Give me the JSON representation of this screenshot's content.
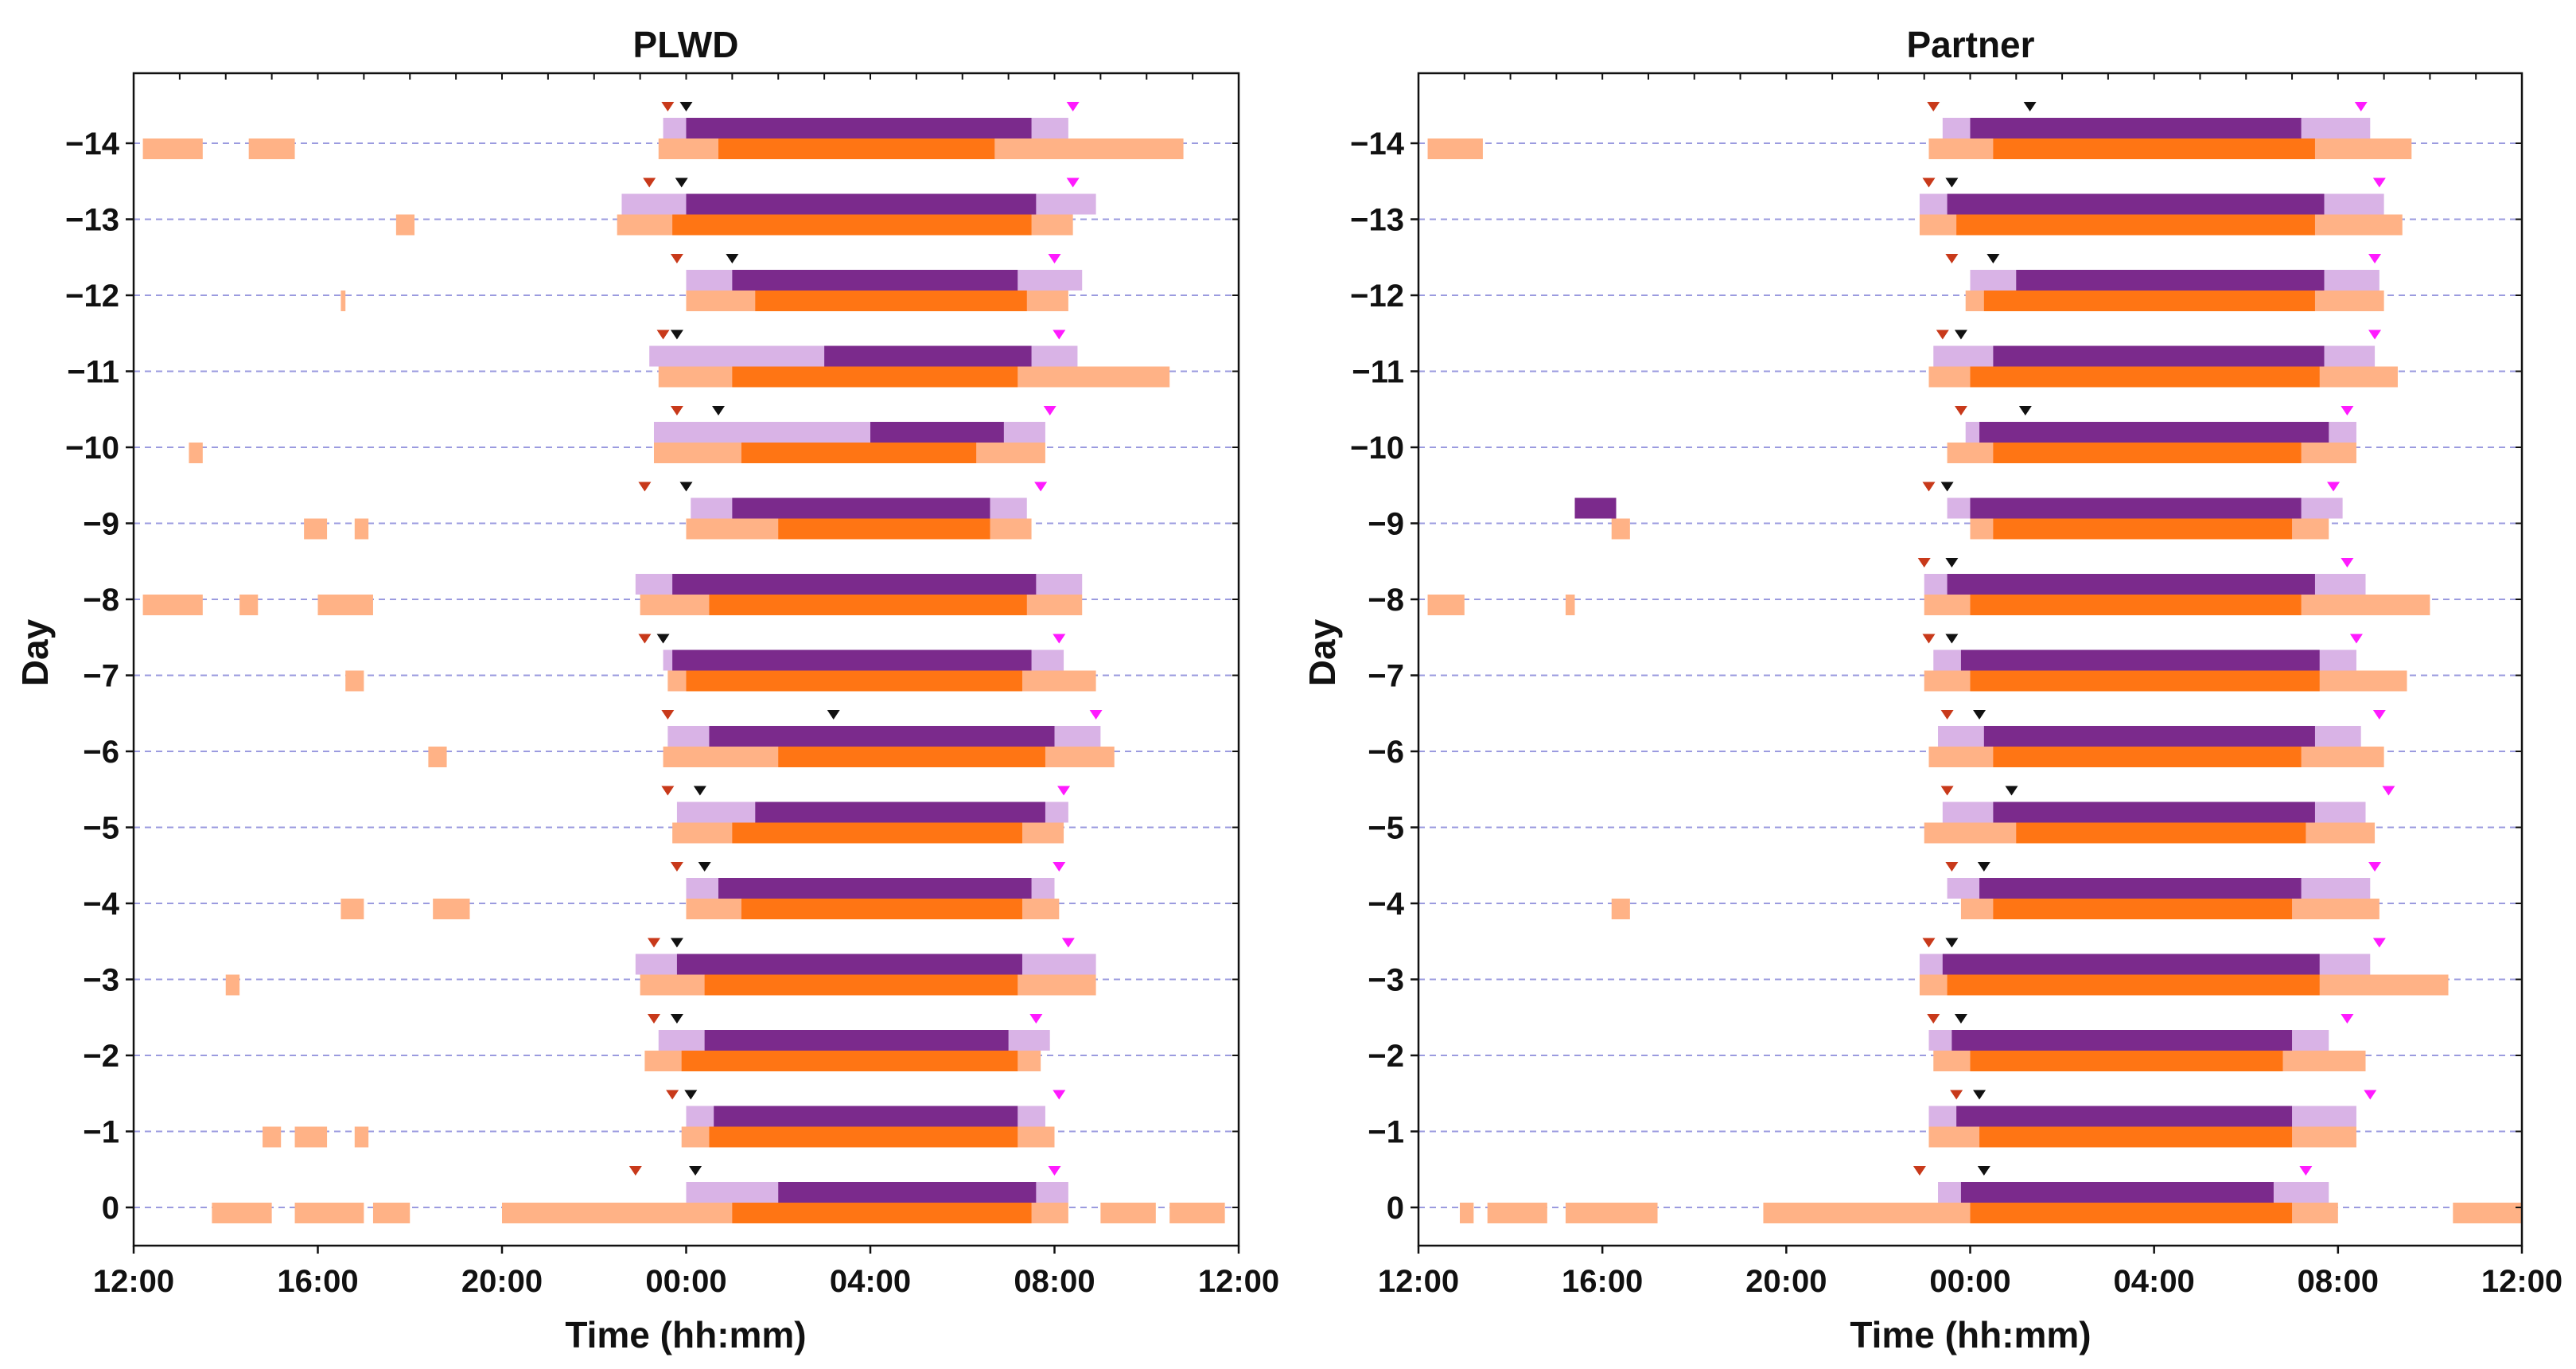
{
  "colors": {
    "sleep_dark": "#7b2a8c",
    "sleep_light": "#d9b3e6",
    "activity_dark": "#ff6a00",
    "activity_light": "#ffb286",
    "marker_red": "#c8391a",
    "marker_black": "#111111",
    "marker_magenta": "#ff1aff",
    "gridline": "#9b9bdf"
  },
  "chart_data": [
    {
      "type": "timeline",
      "title": "PLWD",
      "xlabel": "Time (hh:mm)",
      "ylabel": "Day",
      "xlim": [
        12,
        36
      ],
      "x_ticks": [
        12,
        16,
        20,
        24,
        28,
        32,
        36
      ],
      "x_tick_labels": [
        "12:00",
        "16:00",
        "20:00",
        "00:00",
        "04:00",
        "08:00",
        "12:00"
      ],
      "y_ticks": [
        0,
        -1,
        -2,
        -3,
        -4,
        -5,
        -6,
        -7,
        -8,
        -9,
        -10,
        -11,
        -12,
        -13,
        -14
      ],
      "y_tick_labels": [
        "0",
        "−1",
        "−2",
        "−3",
        "−4",
        "−5",
        "−6",
        "−7",
        "−8",
        "−9",
        "−10",
        "−11",
        "−12",
        "−13",
        "−14"
      ],
      "days": [
        {
          "day": 0,
          "sleep_start": 24.0,
          "sleep_end": 32.3,
          "deep": [
            [
              26.0,
              31.6
            ]
          ],
          "act_light": [
            [
              13.7,
              15.0
            ],
            [
              15.5,
              17.0
            ],
            [
              17.2,
              18.0
            ],
            [
              20.0,
              32.3
            ],
            [
              33.0,
              34.2
            ],
            [
              34.5,
              35.7
            ]
          ],
          "act_dark": [
            [
              25.0,
              31.5
            ]
          ],
          "onset_red": 22.9,
          "onset_black": 24.2,
          "offset_magenta": 32.0
        },
        {
          "day": -1,
          "sleep_start": 24.0,
          "sleep_end": 31.8,
          "deep": [
            [
              24.6,
              31.2
            ]
          ],
          "act_light": [
            [
              14.8,
              15.2
            ],
            [
              15.5,
              16.2
            ],
            [
              16.8,
              17.1
            ],
            [
              23.9,
              32.0
            ]
          ],
          "act_dark": [
            [
              24.5,
              31.2
            ]
          ],
          "onset_red": 23.7,
          "onset_black": 24.1,
          "offset_magenta": 32.1
        },
        {
          "day": -2,
          "sleep_start": 23.4,
          "sleep_end": 31.9,
          "deep": [
            [
              24.4,
              31.0
            ]
          ],
          "act_light": [
            [
              23.1,
              31.7
            ]
          ],
          "act_dark": [
            [
              23.9,
              31.2
            ]
          ],
          "onset_red": 23.3,
          "onset_black": 23.8,
          "offset_magenta": 31.6
        },
        {
          "day": -3,
          "sleep_start": 22.9,
          "sleep_end": 32.9,
          "deep": [
            [
              23.8,
              31.3
            ]
          ],
          "act_light": [
            [
              14.0,
              14.3
            ],
            [
              23.0,
              32.9
            ]
          ],
          "act_dark": [
            [
              24.4,
              31.2
            ]
          ],
          "onset_red": 23.3,
          "onset_black": 23.8,
          "offset_magenta": 32.3
        },
        {
          "day": -4,
          "sleep_start": 24.0,
          "sleep_end": 32.0,
          "deep": [
            [
              24.7,
              31.5
            ]
          ],
          "act_light": [
            [
              16.5,
              17.0
            ],
            [
              18.5,
              19.3
            ],
            [
              24.0,
              32.1
            ]
          ],
          "act_dark": [
            [
              25.2,
              31.3
            ]
          ],
          "onset_red": 23.8,
          "onset_black": 24.4,
          "offset_magenta": 32.1
        },
        {
          "day": -5,
          "sleep_start": 23.8,
          "sleep_end": 32.3,
          "deep": [
            [
              25.5,
              31.8
            ]
          ],
          "act_light": [
            [
              23.7,
              32.2
            ]
          ],
          "act_dark": [
            [
              25.0,
              31.3
            ]
          ],
          "onset_red": 23.6,
          "onset_black": 24.3,
          "offset_magenta": 32.2
        },
        {
          "day": -6,
          "sleep_start": 23.6,
          "sleep_end": 33.0,
          "deep": [
            [
              24.5,
              32.0
            ]
          ],
          "act_light": [
            [
              18.4,
              18.8
            ],
            [
              23.5,
              33.3
            ]
          ],
          "act_dark": [
            [
              26.0,
              31.8
            ]
          ],
          "onset_red": 23.6,
          "onset_black": 27.2,
          "offset_magenta": 32.9
        },
        {
          "day": -7,
          "sleep_start": 23.5,
          "sleep_end": 32.2,
          "deep": [
            [
              23.7,
              31.5
            ]
          ],
          "act_light": [
            [
              16.6,
              17.0
            ],
            [
              23.6,
              32.9
            ]
          ],
          "act_dark": [
            [
              24.0,
              31.3
            ]
          ],
          "onset_red": 23.1,
          "onset_black": 23.5,
          "offset_magenta": 32.1
        },
        {
          "day": -8,
          "sleep_start": 22.9,
          "sleep_end": 32.6,
          "deep": [
            [
              23.7,
              31.6
            ]
          ],
          "act_light": [
            [
              12.2,
              13.5
            ],
            [
              14.3,
              14.7
            ],
            [
              16.0,
              17.2
            ],
            [
              23.0,
              32.6
            ]
          ],
          "act_dark": [
            [
              24.5,
              31.4
            ]
          ],
          "onset_red": null,
          "onset_black": null,
          "offset_magenta": null
        },
        {
          "day": -9,
          "sleep_start": 24.1,
          "sleep_end": 31.4,
          "deep": [
            [
              25.0,
              30.6
            ]
          ],
          "act_light": [
            [
              15.7,
              16.2
            ],
            [
              16.8,
              17.1
            ],
            [
              24.0,
              31.5
            ]
          ],
          "act_dark": [
            [
              26.0,
              30.6
            ]
          ],
          "onset_red": 23.1,
          "onset_black": 24.0,
          "offset_magenta": 31.7
        },
        {
          "day": -10,
          "sleep_start": 23.3,
          "sleep_end": 31.8,
          "deep": [
            [
              28.0,
              30.9
            ]
          ],
          "act_light": [
            [
              13.2,
              13.5
            ],
            [
              23.3,
              31.8
            ]
          ],
          "act_dark": [
            [
              25.2,
              30.3
            ]
          ],
          "onset_red": 23.8,
          "onset_black": 24.7,
          "offset_magenta": 31.9
        },
        {
          "day": -11,
          "sleep_start": 23.2,
          "sleep_end": 32.5,
          "deep": [
            [
              27.0,
              31.5
            ]
          ],
          "act_light": [
            [
              23.4,
              34.5
            ]
          ],
          "act_dark": [
            [
              25.0,
              31.2
            ]
          ],
          "onset_red": 23.5,
          "onset_black": 23.8,
          "offset_magenta": 32.1
        },
        {
          "day": -12,
          "sleep_start": 24.0,
          "sleep_end": 32.6,
          "deep": [
            [
              25.0,
              31.2
            ]
          ],
          "act_light": [
            [
              16.5,
              16.6
            ],
            [
              24.0,
              32.3
            ]
          ],
          "act_dark": [
            [
              25.5,
              31.4
            ]
          ],
          "onset_red": 23.8,
          "onset_black": 25.0,
          "offset_magenta": 32.0
        },
        {
          "day": -13,
          "sleep_start": 22.6,
          "sleep_end": 32.9,
          "deep": [
            [
              24.0,
              31.6
            ]
          ],
          "act_light": [
            [
              17.7,
              18.1
            ],
            [
              22.5,
              32.4
            ]
          ],
          "act_dark": [
            [
              23.7,
              31.5
            ]
          ],
          "onset_red": 23.2,
          "onset_black": 23.9,
          "offset_magenta": 32.4
        },
        {
          "day": -14,
          "sleep_start": 23.5,
          "sleep_end": 32.3,
          "deep": [
            [
              24.0,
              31.5
            ]
          ],
          "act_light": [
            [
              12.2,
              13.5
            ],
            [
              14.5,
              15.5
            ],
            [
              23.4,
              34.8
            ]
          ],
          "act_dark": [
            [
              24.7,
              30.7
            ]
          ],
          "onset_red": 23.6,
          "onset_black": 24.0,
          "offset_magenta": 32.4
        }
      ]
    },
    {
      "type": "timeline",
      "title": "Partner",
      "xlabel": "Time (hh:mm)",
      "ylabel": "Day",
      "xlim": [
        12,
        36
      ],
      "x_ticks": [
        12,
        16,
        20,
        24,
        28,
        32,
        36
      ],
      "x_tick_labels": [
        "12:00",
        "16:00",
        "20:00",
        "00:00",
        "04:00",
        "08:00",
        "12:00"
      ],
      "y_ticks": [
        0,
        -1,
        -2,
        -3,
        -4,
        -5,
        -6,
        -7,
        -8,
        -9,
        -10,
        -11,
        -12,
        -13,
        -14
      ],
      "y_tick_labels": [
        "0",
        "−1",
        "−2",
        "−3",
        "−4",
        "−5",
        "−6",
        "−7",
        "−8",
        "−9",
        "−10",
        "−11",
        "−12",
        "−13",
        "−14"
      ],
      "days": [
        {
          "day": 0,
          "sleep_start": 23.3,
          "sleep_end": 31.8,
          "deep": [
            [
              23.8,
              30.6
            ]
          ],
          "act_light": [
            [
              12.9,
              13.2
            ],
            [
              13.5,
              14.8
            ],
            [
              15.2,
              17.2
            ],
            [
              19.5,
              32.0
            ],
            [
              34.5,
              36.0
            ]
          ],
          "act_dark": [
            [
              24.0,
              31.0
            ]
          ],
          "onset_red": 22.9,
          "onset_black": 24.3,
          "offset_magenta": 31.3
        },
        {
          "day": -1,
          "sleep_start": 23.1,
          "sleep_end": 32.4,
          "deep": [
            [
              23.7,
              31.0
            ]
          ],
          "act_light": [
            [
              23.1,
              32.4
            ]
          ],
          "act_dark": [
            [
              24.2,
              31.0
            ]
          ],
          "onset_red": 23.7,
          "onset_black": 24.2,
          "offset_magenta": 32.7
        },
        {
          "day": -2,
          "sleep_start": 23.1,
          "sleep_end": 31.8,
          "deep": [
            [
              23.6,
              31.0
            ]
          ],
          "act_light": [
            [
              23.2,
              32.6
            ]
          ],
          "act_dark": [
            [
              24.0,
              30.8
            ]
          ],
          "onset_red": 23.2,
          "onset_black": 23.8,
          "offset_magenta": 32.2
        },
        {
          "day": -3,
          "sleep_start": 22.9,
          "sleep_end": 32.7,
          "deep": [
            [
              23.4,
              31.6
            ]
          ],
          "act_light": [
            [
              22.9,
              34.4
            ]
          ],
          "act_dark": [
            [
              23.5,
              31.6
            ]
          ],
          "onset_red": 23.1,
          "onset_black": 23.6,
          "offset_magenta": 32.9
        },
        {
          "day": -4,
          "sleep_start": 23.5,
          "sleep_end": 32.7,
          "deep": [
            [
              24.2,
              31.2
            ]
          ],
          "act_light": [
            [
              16.2,
              16.6
            ],
            [
              23.8,
              32.9
            ]
          ],
          "act_dark": [
            [
              24.5,
              31.0
            ]
          ],
          "onset_red": 23.6,
          "onset_black": 24.3,
          "offset_magenta": 32.8
        },
        {
          "day": -5,
          "sleep_start": 23.4,
          "sleep_end": 32.6,
          "deep": [
            [
              24.5,
              31.5
            ]
          ],
          "act_light": [
            [
              23.0,
              32.8
            ]
          ],
          "act_dark": [
            [
              25.0,
              31.3
            ]
          ],
          "onset_red": 23.5,
          "onset_black": 24.9,
          "offset_magenta": 33.1
        },
        {
          "day": -6,
          "sleep_start": 23.3,
          "sleep_end": 32.5,
          "deep": [
            [
              24.3,
              31.5
            ]
          ],
          "act_light": [
            [
              23.1,
              33.0
            ]
          ],
          "act_dark": [
            [
              24.5,
              31.2
            ]
          ],
          "onset_red": 23.5,
          "onset_black": 24.2,
          "offset_magenta": 32.9
        },
        {
          "day": -7,
          "sleep_start": 23.2,
          "sleep_end": 32.4,
          "deep": [
            [
              23.8,
              31.6
            ]
          ],
          "act_light": [
            [
              23.0,
              33.5
            ]
          ],
          "act_dark": [
            [
              24.0,
              31.6
            ]
          ],
          "onset_red": 23.1,
          "onset_black": 23.6,
          "offset_magenta": 32.4
        },
        {
          "day": -8,
          "sleep_start": 23.0,
          "sleep_end": 32.6,
          "deep": [
            [
              23.5,
              31.5
            ]
          ],
          "act_light": [
            [
              12.2,
              13.0
            ],
            [
              15.2,
              15.4
            ],
            [
              23.0,
              34.0
            ]
          ],
          "act_dark": [
            [
              24.0,
              31.2
            ]
          ],
          "onset_red": 23.0,
          "onset_black": 23.6,
          "offset_magenta": 32.2
        },
        {
          "day": -9,
          "sleep_start": 23.5,
          "sleep_end": 32.1,
          "deep": [
            [
              15.4,
              16.3
            ],
            [
              24.0,
              31.2
            ]
          ],
          "act_light": [
            [
              16.2,
              16.6
            ],
            [
              24.0,
              31.8
            ]
          ],
          "act_dark": [
            [
              24.5,
              31.0
            ]
          ],
          "onset_red": 23.1,
          "onset_black": 23.5,
          "offset_magenta": 31.9
        },
        {
          "day": -10,
          "sleep_start": 23.9,
          "sleep_end": 32.4,
          "deep": [
            [
              24.2,
              31.8
            ]
          ],
          "act_light": [
            [
              23.5,
              32.4
            ]
          ],
          "act_dark": [
            [
              24.5,
              31.2
            ]
          ],
          "onset_red": 23.8,
          "onset_black": 25.2,
          "offset_magenta": 32.2
        },
        {
          "day": -11,
          "sleep_start": 23.2,
          "sleep_end": 32.8,
          "deep": [
            [
              24.5,
              31.7
            ]
          ],
          "act_light": [
            [
              23.1,
              33.3
            ]
          ],
          "act_dark": [
            [
              24.0,
              31.6
            ]
          ],
          "onset_red": 23.4,
          "onset_black": 23.8,
          "offset_magenta": 32.8
        },
        {
          "day": -12,
          "sleep_start": 24.0,
          "sleep_end": 32.9,
          "deep": [
            [
              25.0,
              31.7
            ]
          ],
          "act_light": [
            [
              23.9,
              33.0
            ]
          ],
          "act_dark": [
            [
              24.3,
              31.5
            ]
          ],
          "onset_red": 23.6,
          "onset_black": 24.5,
          "offset_magenta": 32.8
        },
        {
          "day": -13,
          "sleep_start": 22.9,
          "sleep_end": 33.0,
          "deep": [
            [
              23.5,
              31.7
            ]
          ],
          "act_light": [
            [
              22.9,
              33.4
            ]
          ],
          "act_dark": [
            [
              23.7,
              31.5
            ]
          ],
          "onset_red": 23.1,
          "onset_black": 23.6,
          "offset_magenta": 32.9
        },
        {
          "day": -14,
          "sleep_start": 23.4,
          "sleep_end": 32.7,
          "deep": [
            [
              24.0,
              31.2
            ]
          ],
          "act_light": [
            [
              12.2,
              13.4
            ],
            [
              23.1,
              33.6
            ]
          ],
          "act_dark": [
            [
              24.5,
              31.5
            ]
          ],
          "onset_red": 23.2,
          "onset_black": 25.3,
          "offset_magenta": 32.5
        }
      ]
    }
  ]
}
